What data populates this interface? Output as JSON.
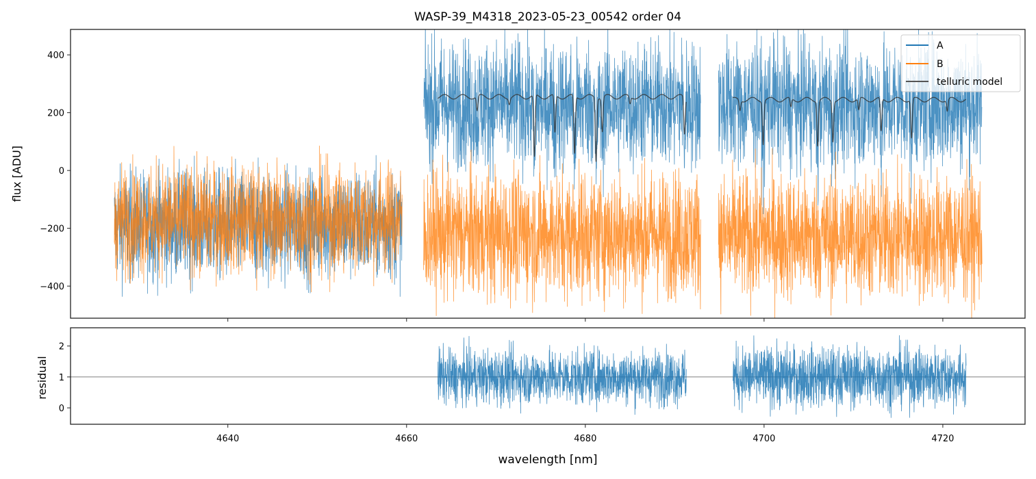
{
  "chart_data": [
    {
      "type": "line",
      "title": "WASP-39_M4318_2023-05-23_00542  order 04",
      "xlabel": "",
      "ylabel": "flux [ADU]",
      "xlim": [
        4622.4,
        4729.2
      ],
      "ylim": [
        -511,
        488
      ],
      "yticks": [
        400,
        200,
        0,
        -200,
        -400
      ],
      "yticklabels": [
        "400",
        "200",
        "0",
        "−200",
        "−400"
      ],
      "legend": {
        "placement": "top-right",
        "entries": [
          "A",
          "B",
          "telluric model"
        ]
      },
      "series": [
        {
          "name": "A",
          "color": "#1f77b4",
          "segments": [
            {
              "x": [
                4627.3,
                4659.5
              ],
              "mean": -190,
              "spread": 95
            },
            {
              "x": [
                4661.9,
                4692.9
              ],
              "mean": 230,
              "spread": 110
            },
            {
              "x": [
                4694.9,
                4724.4
              ],
              "mean": 230,
              "spread": 110
            }
          ]
        },
        {
          "name": "B",
          "color": "#ff7f0e",
          "segments": [
            {
              "x": [
                4627.3,
                4659.5
              ],
              "mean": -170,
              "spread": 95
            },
            {
              "x": [
                4661.9,
                4692.9
              ],
              "mean": -220,
              "spread": 110
            },
            {
              "x": [
                4694.9,
                4724.4
              ],
              "mean": -230,
              "spread": 110
            }
          ]
        },
        {
          "name": "telluric model",
          "color": "#333333",
          "segments": [
            {
              "x": [
                4663.5,
                4691.3
              ],
              "level": 255
            },
            {
              "x": [
                4696.5,
                4722.6
              ],
              "level": 245
            }
          ],
          "lines": [
            {
              "x": 4667.9,
              "depth": 50
            },
            {
              "x": 4671.5,
              "depth": 20
            },
            {
              "x": 4674.3,
              "depth": 215
            },
            {
              "x": 4676.6,
              "depth": 130
            },
            {
              "x": 4678.8,
              "depth": 200
            },
            {
              "x": 4681.2,
              "depth": 220
            },
            {
              "x": 4681.9,
              "depth": 120
            },
            {
              "x": 4685.0,
              "depth": 25
            },
            {
              "x": 4691.1,
              "depth": 130
            },
            {
              "x": 4697.3,
              "depth": 35
            },
            {
              "x": 4699.9,
              "depth": 150
            },
            {
              "x": 4703.0,
              "depth": 30
            },
            {
              "x": 4706.0,
              "depth": 155
            },
            {
              "x": 4707.7,
              "depth": 140
            },
            {
              "x": 4710.6,
              "depth": 40
            },
            {
              "x": 4713.1,
              "depth": 115
            },
            {
              "x": 4716.5,
              "depth": 135
            },
            {
              "x": 4720.5,
              "depth": 40
            }
          ]
        }
      ]
    },
    {
      "type": "line",
      "title": "",
      "xlabel": "wavelength [nm]",
      "ylabel": "residual",
      "xlim": [
        4622.4,
        4729.2
      ],
      "ylim": [
        -0.53,
        2.59
      ],
      "xticks": [
        4640,
        4660,
        4680,
        4700,
        4720
      ],
      "xticklabels": [
        "4640",
        "4660",
        "4680",
        "4700",
        "4720"
      ],
      "yticks": [
        2,
        1,
        0
      ],
      "yticklabels": [
        "2",
        "1",
        "0"
      ],
      "reference_line": 1,
      "series": [
        {
          "name": "A residual",
          "color": "#1f77b4",
          "segments": [
            {
              "x": [
                4663.5,
                4691.3
              ],
              "mean": 1.0,
              "spread": 0.45
            },
            {
              "x": [
                4696.5,
                4722.6
              ],
              "mean": 1.0,
              "spread": 0.5
            }
          ]
        }
      ]
    }
  ]
}
